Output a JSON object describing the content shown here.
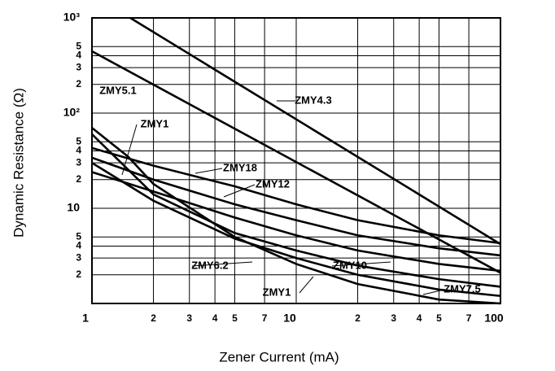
{
  "chart_data": {
    "type": "line",
    "ylabel": "Dynamic Resistance (Ω)",
    "xlabel": "Zener Current (mA)",
    "xscale": "log",
    "yscale": "log",
    "grid": true,
    "color": "#000000",
    "xlim": [
      1,
      100
    ],
    "ylim": [
      1,
      1000
    ],
    "xticks": [
      1,
      2,
      3,
      4,
      5,
      7,
      10,
      {
        "value": 20,
        "label": "2"
      },
      {
        "value": 30,
        "label": "3"
      },
      {
        "value": 40,
        "label": "4"
      },
      {
        "value": 50,
        "label": "5"
      },
      {
        "value": 70,
        "label": "7"
      },
      100
    ],
    "yticks": [
      {
        "value": 1000,
        "label": "10³"
      },
      {
        "value": 500,
        "label": "5"
      },
      {
        "value": 400,
        "label": "4"
      },
      {
        "value": 300,
        "label": "3"
      },
      {
        "value": 200,
        "label": "2"
      },
      {
        "value": 100,
        "label": "10²"
      },
      {
        "value": 50,
        "label": "5"
      },
      {
        "value": 40,
        "label": "4"
      },
      {
        "value": 30,
        "label": "3"
      },
      {
        "value": 20,
        "label": "2"
      },
      10,
      5,
      4,
      3,
      2
    ],
    "series": [
      {
        "name": "ZMY4.3",
        "color": "#000000",
        "x": [
          1.54,
          100
        ],
        "values": [
          1000,
          4.2
        ]
      },
      {
        "name": "ZMY5.1",
        "color": "#000000",
        "x": [
          1,
          100
        ],
        "values": [
          446,
          2.1
        ]
      },
      {
        "name": "ZMY1",
        "color": "#000000",
        "x": [
          1,
          1.5,
          2,
          5,
          10,
          20,
          50,
          100
        ],
        "values": [
          70,
          35,
          18,
          5,
          2.6,
          1.6,
          1.1,
          1.0
        ]
      },
      {
        "name": "ZMY18",
        "color": "#000000",
        "x": [
          1,
          2,
          5,
          10,
          20,
          50,
          100
        ],
        "values": [
          43,
          28,
          17,
          11,
          7.5,
          5.2,
          4.3
        ]
      },
      {
        "name": "ZMY12",
        "color": "#000000",
        "x": [
          1,
          2,
          5,
          10,
          20,
          50,
          100
        ],
        "values": [
          34,
          20,
          11,
          7.5,
          5.2,
          3.8,
          3.2
        ]
      },
      {
        "name": "ZMY6.2",
        "color": "#000000",
        "x": [
          1,
          2,
          5,
          10,
          20,
          50,
          100
        ],
        "values": [
          30,
          12,
          4.8,
          3.0,
          2.0,
          1.4,
          1.2
        ]
      },
      {
        "name": "ZMY10",
        "color": "#000000",
        "x": [
          1,
          2,
          5,
          10,
          20,
          50,
          100
        ],
        "values": [
          24,
          15,
          8,
          5.2,
          3.6,
          2.6,
          2.2
        ]
      },
      {
        "name": "ZMY7.5",
        "color": "#000000",
        "x": [
          1,
          2,
          5,
          10,
          20,
          50,
          100
        ],
        "values": [
          60,
          14,
          5.5,
          3.6,
          2.5,
          1.8,
          1.5
        ]
      }
    ],
    "annotations": [
      "ZMY1"
    ]
  }
}
